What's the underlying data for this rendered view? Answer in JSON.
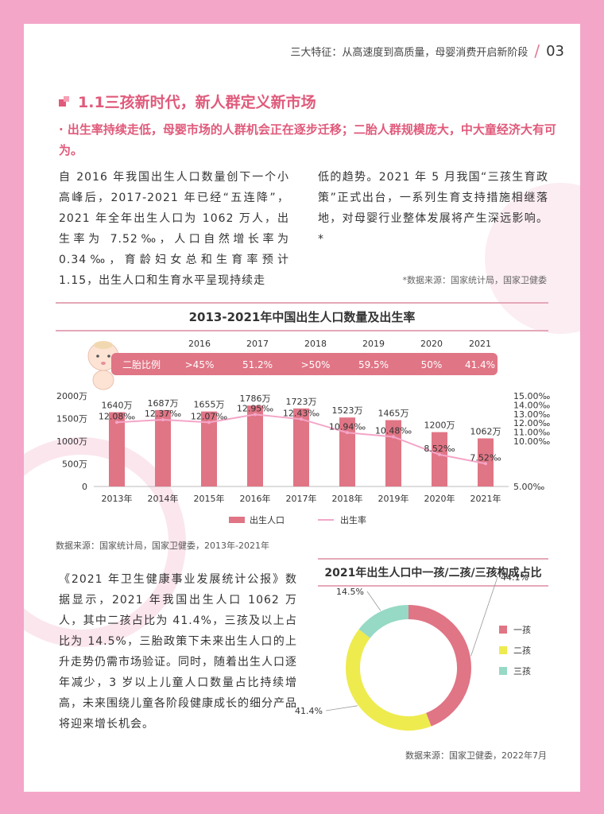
{
  "header": {
    "text": "三大特征：从高速度到高质量，母婴消费开启新阶段",
    "page_num": "03"
  },
  "section": {
    "title": "1.1三孩新时代，新人群定义新市场",
    "bullet": "· 出生率持续走低，母婴市场的人群机会正在逐步迁移；二胎人群规模庞大，中大童经济大有可为。"
  },
  "para1": {
    "left": "自 2016 年我国出生人口数量创下一个小高峰后，2017-2021 年已经“五连降”，2021 年全年出生人口为 1062 万人，出生率为 7.52‰，人口自然增长率为 0.34‰，育龄妇女总和生育率预计 1.15，出生人口和生育水平呈现持续走",
    "right": "低的趋势。2021 年 5 月我国“三孩生育政策”正式出台，一系列生育支持措施相继落地，对母婴行业整体发展将产生深远影响。*",
    "source": "*数据来源：国家统计局，国家卫健委"
  },
  "para2": {
    "text": "《2021 年卫生健康事业发展统计公报》数据显示，2021 年我国出生人口 1062 万人，其中二孩占比为 41.4%，三孩及以上占比为 14.5%，三胎政策下未来出生人口的上升走势仍需市场验证。同时，随着出生人口逐年减少，3 岁以上儿童人口数量占比持续增高，未来围绕儿童各阶段健康成长的细分产品将迎来增长机会。"
  },
  "chart_data": [
    {
      "type": "bar",
      "title": "2013-2021年中国出生人口数量及出生率",
      "categories": [
        "2013年",
        "2014年",
        "2015年",
        "2016年",
        "2017年",
        "2018年",
        "2019年",
        "2020年",
        "2021年"
      ],
      "series": [
        {
          "name": "出生人口",
          "type": "bar",
          "axis": "left",
          "values": [
            1640,
            1687,
            1655,
            1786,
            1723,
            1523,
            1465,
            1200,
            1062
          ],
          "labels": [
            "1640万",
            "1687万",
            "1655万",
            "1786万",
            "1723万",
            "1523万",
            "1465万",
            "1200万",
            "1062万"
          ]
        },
        {
          "name": "出生率",
          "type": "line",
          "axis": "right",
          "values": [
            12.08,
            12.37,
            12.07,
            12.95,
            12.43,
            10.94,
            10.48,
            8.52,
            7.52
          ],
          "labels": [
            "12.08‰",
            "12.37‰",
            "12.07‰",
            "12.95‰",
            "12.43‰",
            "10.94‰",
            "10.48‰",
            "8.52‰",
            "7.52‰"
          ]
        }
      ],
      "y_left": {
        "ticks": [
          "0",
          "500万",
          "1000万",
          "1500万",
          "2000万"
        ],
        "tick_values": [
          0,
          500,
          1000,
          1500,
          2000
        ],
        "ylim": [
          0,
          2000
        ]
      },
      "y_right": {
        "ticks": [
          "5.00‰",
          "10.00‰",
          "11.00‰",
          "12.00‰",
          "13.00‰",
          "14.00‰",
          "15.00‰"
        ]
      },
      "second_child_row": {
        "label": "二胎比例",
        "years": [
          "2016",
          "2017",
          "2018",
          "2019",
          "2020",
          "2021"
        ],
        "values": [
          ">45%",
          "51.2%",
          ">50%",
          "59.5%",
          "50%",
          "41.4%"
        ]
      },
      "legend": "bottom-center",
      "colors": {
        "bar": "#e07585",
        "line": "#f4a6c8"
      },
      "source": "数据来源：国家统计局，国家卫健委，2013年-2021年"
    },
    {
      "type": "pie",
      "title": "2021年出生人口中一孩/二孩/三孩构成占比",
      "categories": [
        "一孩",
        "二孩",
        "三孩"
      ],
      "values": [
        44.1,
        41.4,
        14.5
      ],
      "labels": [
        "44.1%",
        "41.4%",
        "14.5%"
      ],
      "colors": [
        "#e07585",
        "#eeeb4f",
        "#96d9c5"
      ],
      "legend": "right",
      "source": "数据来源：国家卫健委，2022年7月"
    }
  ]
}
